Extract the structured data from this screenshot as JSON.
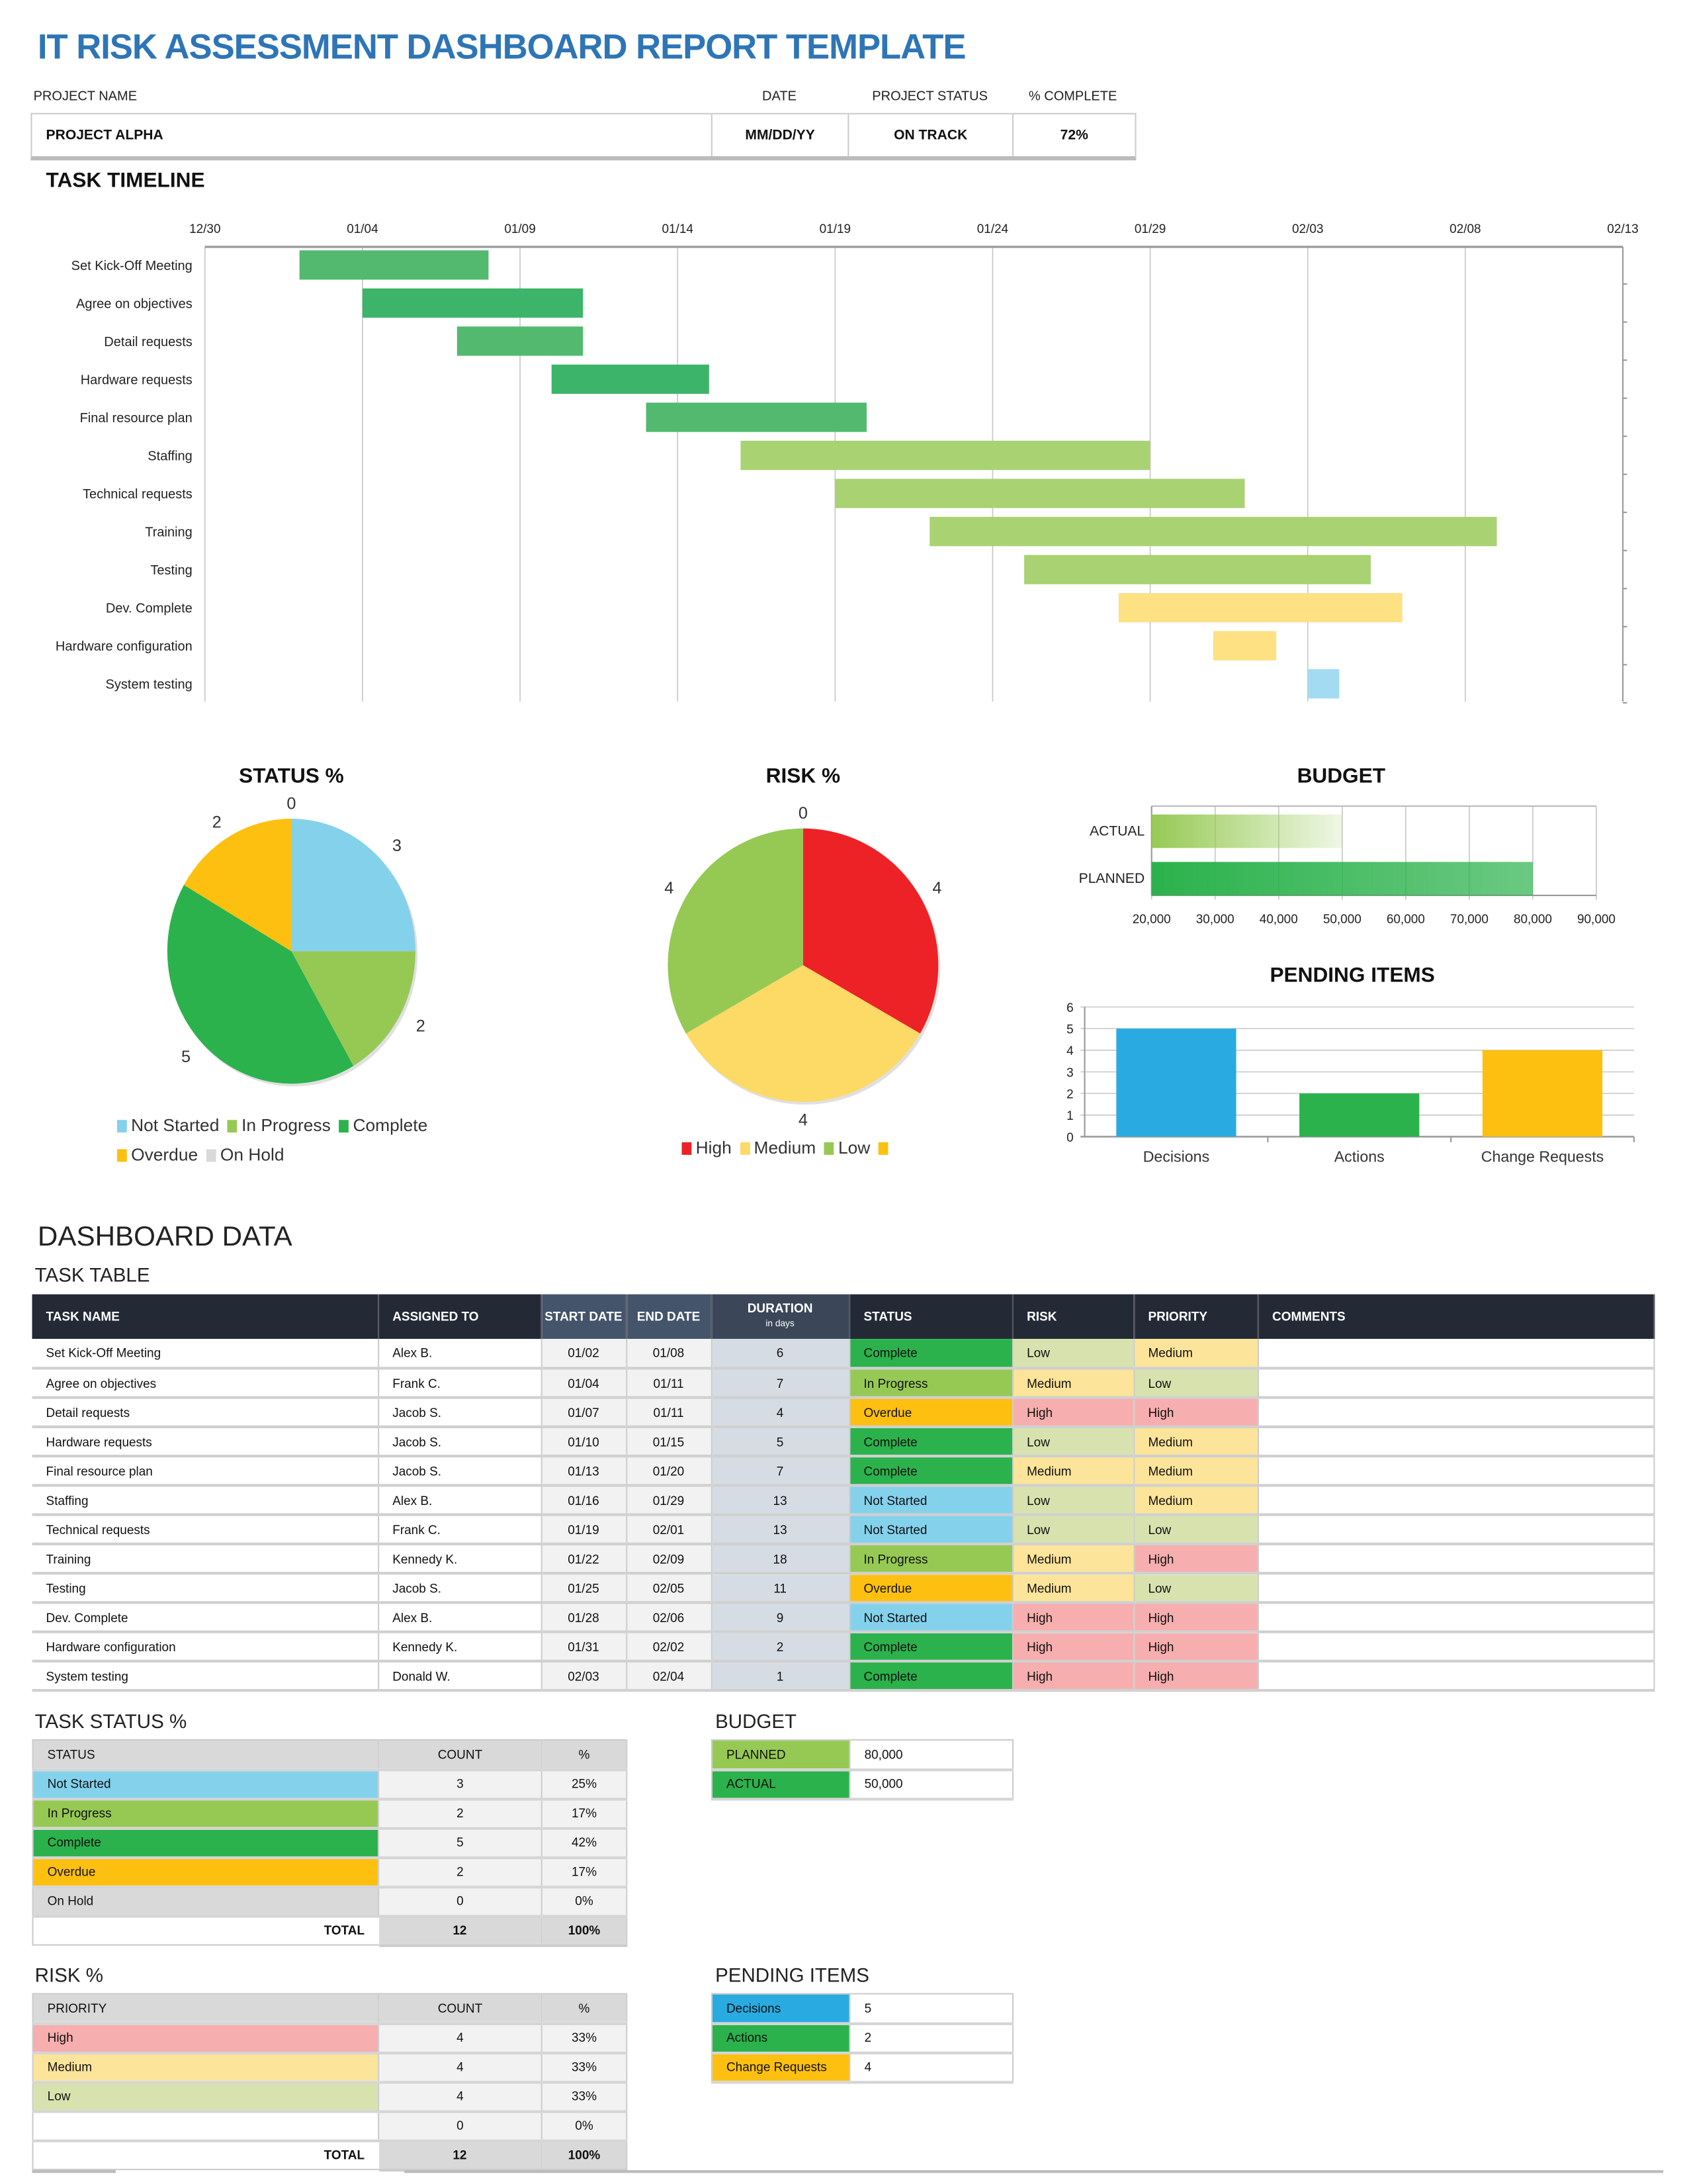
{
  "header": {
    "title": "IT RISK ASSESSMENT DASHBOARD REPORT TEMPLATE",
    "labels": {
      "project_name": "PROJECT NAME",
      "date": "DATE",
      "project_status": "PROJECT STATUS",
      "percent_complete": "% COMPLETE"
    },
    "values": {
      "project_name": "PROJECT ALPHA",
      "date": "MM/DD/YY",
      "project_status": "ON TRACK",
      "percent_complete": "72%"
    }
  },
  "timeline": {
    "title": "TASK TIMELINE"
  },
  "chart_data": [
    {
      "type": "gantt",
      "title": "",
      "x_ticks": [
        "12/30",
        "01/04",
        "01/09",
        "01/14",
        "01/19",
        "01/24",
        "01/29",
        "02/03",
        "02/08",
        "02/13"
      ],
      "xlim": [
        "12/30",
        "02/13"
      ],
      "grid": true,
      "tasks": [
        {
          "name": "Set Kick-Off Meeting",
          "start": "01/02",
          "duration": 6,
          "color": "#52b96f"
        },
        {
          "name": "Agree on objectives",
          "start": "01/04",
          "duration": 7,
          "color": "#3cb56a"
        },
        {
          "name": "Detail requests",
          "start": "01/07",
          "duration": 4,
          "color": "#52b96f"
        },
        {
          "name": "Hardware requests",
          "start": "01/10",
          "duration": 5,
          "color": "#3cb56a"
        },
        {
          "name": "Final resource plan",
          "start": "01/13",
          "duration": 7,
          "color": "#52b96f"
        },
        {
          "name": "Staffing",
          "start": "01/16",
          "duration": 13,
          "color": "#a9d273"
        },
        {
          "name": "Technical requests",
          "start": "01/19",
          "duration": 13,
          "color": "#a9d273"
        },
        {
          "name": "Training",
          "start": "01/22",
          "duration": 18,
          "color": "#a9d273"
        },
        {
          "name": "Testing",
          "start": "01/25",
          "duration": 11,
          "color": "#a9d273"
        },
        {
          "name": "Dev. Complete",
          "start": "01/28",
          "duration": 9,
          "color": "#fde183"
        },
        {
          "name": "Hardware configuration",
          "start": "01/31",
          "duration": 2,
          "color": "#fde183"
        },
        {
          "name": "System testing",
          "start": "02/03",
          "duration": 1,
          "color": "#a3dcf2"
        }
      ]
    },
    {
      "type": "pie",
      "title": "STATUS %",
      "categories": [
        "Not Started",
        "In Progress",
        "Complete",
        "Overdue",
        "On Hold"
      ],
      "values": [
        3,
        2,
        5,
        2,
        0
      ],
      "colors": [
        "#84d1ec",
        "#96c954",
        "#2bb24c",
        "#fdc010",
        "#d9d9d9"
      ],
      "legend": "bottom"
    },
    {
      "type": "pie",
      "title": "RISK %",
      "categories": [
        "High",
        "Medium",
        "Low",
        ""
      ],
      "values": [
        4,
        4,
        4,
        0
      ],
      "colors": [
        "#ed2227",
        "#fdd966",
        "#96c954",
        "#fdc010"
      ],
      "legend": "bottom"
    },
    {
      "type": "bar",
      "orientation": "horizontal",
      "title": "BUDGET",
      "categories": [
        "ACTUAL",
        "PLANNED"
      ],
      "values": [
        50000,
        80000
      ],
      "colors": [
        "#96c954",
        "#2bb24c"
      ],
      "xlim": [
        20000,
        90000
      ],
      "x_ticks": [
        "20,000",
        "30,000",
        "40,000",
        "50,000",
        "60,000",
        "70,000",
        "80,000",
        "90,000"
      ],
      "grid": true
    },
    {
      "type": "bar",
      "title": "PENDING ITEMS",
      "categories": [
        "Decisions",
        "Actions",
        "Change Requests"
      ],
      "values": [
        5,
        2,
        4
      ],
      "colors": [
        "#29abe2",
        "#2bb24c",
        "#fdc010"
      ],
      "ylim": [
        0,
        6
      ],
      "y_ticks": [
        "0",
        "1",
        "2",
        "3",
        "4",
        "5",
        "6"
      ],
      "grid": true
    }
  ],
  "dashboard": {
    "title": "DASHBOARD DATA"
  },
  "task_table": {
    "title": "TASK TABLE",
    "columns": [
      "TASK NAME",
      "ASSIGNED TO",
      "START DATE",
      "END DATE",
      "DURATION",
      "STATUS",
      "RISK",
      "PRIORITY",
      "COMMENTS"
    ],
    "duration_sub": "in days",
    "rows": [
      [
        "Set Kick-Off Meeting",
        "Alex B.",
        "01/02",
        "01/08",
        "6",
        "Complete",
        "Low",
        "Medium",
        ""
      ],
      [
        "Agree on objectives",
        "Frank C.",
        "01/04",
        "01/11",
        "7",
        "In Progress",
        "Medium",
        "Low",
        ""
      ],
      [
        "Detail requests",
        "Jacob S.",
        "01/07",
        "01/11",
        "4",
        "Overdue",
        "High",
        "High",
        ""
      ],
      [
        "Hardware requests",
        "Jacob S.",
        "01/10",
        "01/15",
        "5",
        "Complete",
        "Low",
        "Medium",
        ""
      ],
      [
        "Final resource plan",
        "Jacob S.",
        "01/13",
        "01/20",
        "7",
        "Complete",
        "Medium",
        "Medium",
        ""
      ],
      [
        "Staffing",
        "Alex B.",
        "01/16",
        "01/29",
        "13",
        "Not Started",
        "Low",
        "Medium",
        ""
      ],
      [
        "Technical requests",
        "Frank C.",
        "01/19",
        "02/01",
        "13",
        "Not Started",
        "Low",
        "Low",
        ""
      ],
      [
        "Training",
        "Kennedy K.",
        "01/22",
        "02/09",
        "18",
        "In Progress",
        "Medium",
        "High",
        ""
      ],
      [
        "Testing",
        "Jacob S.",
        "01/25",
        "02/05",
        "11",
        "Overdue",
        "Medium",
        "Low",
        ""
      ],
      [
        "Dev. Complete",
        "Alex B.",
        "01/28",
        "02/06",
        "9",
        "Not Started",
        "High",
        "High",
        ""
      ],
      [
        "Hardware configuration",
        "Kennedy K.",
        "01/31",
        "02/02",
        "2",
        "Complete",
        "High",
        "High",
        ""
      ],
      [
        "System testing",
        "Donald W.",
        "02/03",
        "02/04",
        "1",
        "Complete",
        "High",
        "High",
        ""
      ]
    ]
  },
  "task_status": {
    "title": "TASK STATUS %",
    "columns": [
      "STATUS",
      "COUNT",
      "%"
    ],
    "rows": [
      [
        "Not Started",
        "3",
        "25%"
      ],
      [
        "In Progress",
        "2",
        "17%"
      ],
      [
        "Complete",
        "5",
        "42%"
      ],
      [
        "Overdue",
        "2",
        "17%"
      ],
      [
        "On Hold",
        "0",
        "0%"
      ]
    ],
    "total": [
      "TOTAL",
      "12",
      "100%"
    ]
  },
  "risk": {
    "title": "RISK %",
    "columns": [
      "PRIORITY",
      "COUNT",
      "%"
    ],
    "rows": [
      [
        "High",
        "4",
        "33%"
      ],
      [
        "Medium",
        "4",
        "33%"
      ],
      [
        "Low",
        "4",
        "33%"
      ],
      [
        "",
        "0",
        "0%"
      ]
    ],
    "total": [
      "TOTAL",
      "12",
      "100%"
    ]
  },
  "budget_table": {
    "title": "BUDGET",
    "rows": [
      [
        "PLANNED",
        "80,000"
      ],
      [
        "ACTUAL",
        "50,000"
      ]
    ]
  },
  "pending_table": {
    "title": "PENDING ITEMS",
    "rows": [
      [
        "Decisions",
        "5"
      ],
      [
        "Actions",
        "2"
      ],
      [
        "Change Requests",
        "4"
      ]
    ]
  },
  "colors": {
    "title_blue": "#2e75b6",
    "status": {
      "Not Started": "#84d1ec",
      "In Progress": "#96c954",
      "Complete": "#2bb24c",
      "Overdue": "#fdc010",
      "On Hold": "#d9d9d9"
    },
    "level": {
      "High": "#f7aeae",
      "Medium": "#fce49a",
      "Low": "#d8e2ae"
    },
    "budget": {
      "PLANNED": "#96c954",
      "ACTUAL": "#2bb24c"
    },
    "pending": {
      "Decisions": "#29abe2",
      "Actions": "#2bb24c",
      "Change Requests": "#fdc010"
    },
    "table_header": "#232a36"
  }
}
